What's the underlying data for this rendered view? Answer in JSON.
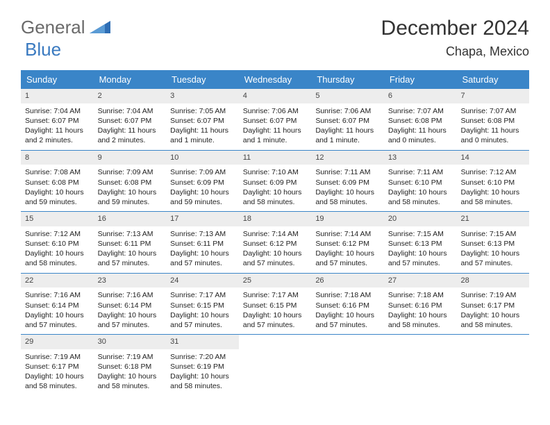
{
  "brand": {
    "part1": "General",
    "part2": "Blue"
  },
  "title": "December 2024",
  "location": "Chapa, Mexico",
  "colors": {
    "header_bg": "#3a85c8",
    "daynum_bg": "#ededed",
    "brand_gray": "#6a6a6a",
    "brand_blue": "#3a7ac0",
    "text": "#222222",
    "rule": "#3a85c8"
  },
  "day_names": [
    "Sunday",
    "Monday",
    "Tuesday",
    "Wednesday",
    "Thursday",
    "Friday",
    "Saturday"
  ],
  "weeks": [
    [
      {
        "n": "1",
        "sunrise": "Sunrise: 7:04 AM",
        "sunset": "Sunset: 6:07 PM",
        "daylight": "Daylight: 11 hours and 2 minutes."
      },
      {
        "n": "2",
        "sunrise": "Sunrise: 7:04 AM",
        "sunset": "Sunset: 6:07 PM",
        "daylight": "Daylight: 11 hours and 2 minutes."
      },
      {
        "n": "3",
        "sunrise": "Sunrise: 7:05 AM",
        "sunset": "Sunset: 6:07 PM",
        "daylight": "Daylight: 11 hours and 1 minute."
      },
      {
        "n": "4",
        "sunrise": "Sunrise: 7:06 AM",
        "sunset": "Sunset: 6:07 PM",
        "daylight": "Daylight: 11 hours and 1 minute."
      },
      {
        "n": "5",
        "sunrise": "Sunrise: 7:06 AM",
        "sunset": "Sunset: 6:07 PM",
        "daylight": "Daylight: 11 hours and 1 minute."
      },
      {
        "n": "6",
        "sunrise": "Sunrise: 7:07 AM",
        "sunset": "Sunset: 6:08 PM",
        "daylight": "Daylight: 11 hours and 0 minutes."
      },
      {
        "n": "7",
        "sunrise": "Sunrise: 7:07 AM",
        "sunset": "Sunset: 6:08 PM",
        "daylight": "Daylight: 11 hours and 0 minutes."
      }
    ],
    [
      {
        "n": "8",
        "sunrise": "Sunrise: 7:08 AM",
        "sunset": "Sunset: 6:08 PM",
        "daylight": "Daylight: 10 hours and 59 minutes."
      },
      {
        "n": "9",
        "sunrise": "Sunrise: 7:09 AM",
        "sunset": "Sunset: 6:08 PM",
        "daylight": "Daylight: 10 hours and 59 minutes."
      },
      {
        "n": "10",
        "sunrise": "Sunrise: 7:09 AM",
        "sunset": "Sunset: 6:09 PM",
        "daylight": "Daylight: 10 hours and 59 minutes."
      },
      {
        "n": "11",
        "sunrise": "Sunrise: 7:10 AM",
        "sunset": "Sunset: 6:09 PM",
        "daylight": "Daylight: 10 hours and 58 minutes."
      },
      {
        "n": "12",
        "sunrise": "Sunrise: 7:11 AM",
        "sunset": "Sunset: 6:09 PM",
        "daylight": "Daylight: 10 hours and 58 minutes."
      },
      {
        "n": "13",
        "sunrise": "Sunrise: 7:11 AM",
        "sunset": "Sunset: 6:10 PM",
        "daylight": "Daylight: 10 hours and 58 minutes."
      },
      {
        "n": "14",
        "sunrise": "Sunrise: 7:12 AM",
        "sunset": "Sunset: 6:10 PM",
        "daylight": "Daylight: 10 hours and 58 minutes."
      }
    ],
    [
      {
        "n": "15",
        "sunrise": "Sunrise: 7:12 AM",
        "sunset": "Sunset: 6:10 PM",
        "daylight": "Daylight: 10 hours and 58 minutes."
      },
      {
        "n": "16",
        "sunrise": "Sunrise: 7:13 AM",
        "sunset": "Sunset: 6:11 PM",
        "daylight": "Daylight: 10 hours and 57 minutes."
      },
      {
        "n": "17",
        "sunrise": "Sunrise: 7:13 AM",
        "sunset": "Sunset: 6:11 PM",
        "daylight": "Daylight: 10 hours and 57 minutes."
      },
      {
        "n": "18",
        "sunrise": "Sunrise: 7:14 AM",
        "sunset": "Sunset: 6:12 PM",
        "daylight": "Daylight: 10 hours and 57 minutes."
      },
      {
        "n": "19",
        "sunrise": "Sunrise: 7:14 AM",
        "sunset": "Sunset: 6:12 PM",
        "daylight": "Daylight: 10 hours and 57 minutes."
      },
      {
        "n": "20",
        "sunrise": "Sunrise: 7:15 AM",
        "sunset": "Sunset: 6:13 PM",
        "daylight": "Daylight: 10 hours and 57 minutes."
      },
      {
        "n": "21",
        "sunrise": "Sunrise: 7:15 AM",
        "sunset": "Sunset: 6:13 PM",
        "daylight": "Daylight: 10 hours and 57 minutes."
      }
    ],
    [
      {
        "n": "22",
        "sunrise": "Sunrise: 7:16 AM",
        "sunset": "Sunset: 6:14 PM",
        "daylight": "Daylight: 10 hours and 57 minutes."
      },
      {
        "n": "23",
        "sunrise": "Sunrise: 7:16 AM",
        "sunset": "Sunset: 6:14 PM",
        "daylight": "Daylight: 10 hours and 57 minutes."
      },
      {
        "n": "24",
        "sunrise": "Sunrise: 7:17 AM",
        "sunset": "Sunset: 6:15 PM",
        "daylight": "Daylight: 10 hours and 57 minutes."
      },
      {
        "n": "25",
        "sunrise": "Sunrise: 7:17 AM",
        "sunset": "Sunset: 6:15 PM",
        "daylight": "Daylight: 10 hours and 57 minutes."
      },
      {
        "n": "26",
        "sunrise": "Sunrise: 7:18 AM",
        "sunset": "Sunset: 6:16 PM",
        "daylight": "Daylight: 10 hours and 57 minutes."
      },
      {
        "n": "27",
        "sunrise": "Sunrise: 7:18 AM",
        "sunset": "Sunset: 6:16 PM",
        "daylight": "Daylight: 10 hours and 58 minutes."
      },
      {
        "n": "28",
        "sunrise": "Sunrise: 7:19 AM",
        "sunset": "Sunset: 6:17 PM",
        "daylight": "Daylight: 10 hours and 58 minutes."
      }
    ],
    [
      {
        "n": "29",
        "sunrise": "Sunrise: 7:19 AM",
        "sunset": "Sunset: 6:17 PM",
        "daylight": "Daylight: 10 hours and 58 minutes."
      },
      {
        "n": "30",
        "sunrise": "Sunrise: 7:19 AM",
        "sunset": "Sunset: 6:18 PM",
        "daylight": "Daylight: 10 hours and 58 minutes."
      },
      {
        "n": "31",
        "sunrise": "Sunrise: 7:20 AM",
        "sunset": "Sunset: 6:19 PM",
        "daylight": "Daylight: 10 hours and 58 minutes."
      },
      {
        "empty": true
      },
      {
        "empty": true
      },
      {
        "empty": true
      },
      {
        "empty": true
      }
    ]
  ]
}
